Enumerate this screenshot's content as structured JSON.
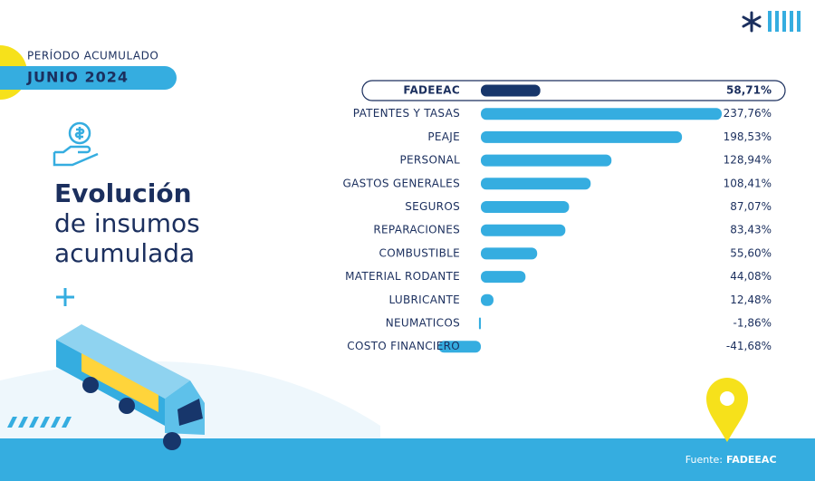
{
  "header": {
    "period_label": "PERÍODO ACUMULADO",
    "period": "JUNIO 2024",
    "title_lines": [
      "Evolución",
      "de insumos",
      "acumulada"
    ]
  },
  "chart_data": {
    "type": "hbar",
    "categories": [
      "FADEEAC",
      "PATENTES Y TASAS",
      "PEAJE",
      "PERSONAL",
      "GASTOS GENERALES",
      "SEGUROS",
      "REPARACIONES",
      "COMBUSTIBLE",
      "MATERIAL RODANTE",
      "LUBRICANTE",
      "NEUMATICOS",
      "COSTO FINANCIERO"
    ],
    "values": [
      58.71,
      237.76,
      198.53,
      128.94,
      108.41,
      87.07,
      83.43,
      55.6,
      44.08,
      12.48,
      -1.86,
      -41.68
    ],
    "value_labels": [
      "58,71%",
      "237,76%",
      "198,53%",
      "128,94%",
      "108,41%",
      "87,07%",
      "83,43%",
      "55,60%",
      "44,08%",
      "12,48%",
      "-1,86%",
      "-41,68%"
    ],
    "colors": [
      "#17366b",
      "#35ade0",
      "#35ade0",
      "#35ade0",
      "#35ade0",
      "#35ade0",
      "#35ade0",
      "#35ade0",
      "#35ade0",
      "#35ade0",
      "#35ade0",
      "#35ade0"
    ]
  },
  "source": {
    "label": "Fuente:",
    "name": "FADEEAC"
  }
}
